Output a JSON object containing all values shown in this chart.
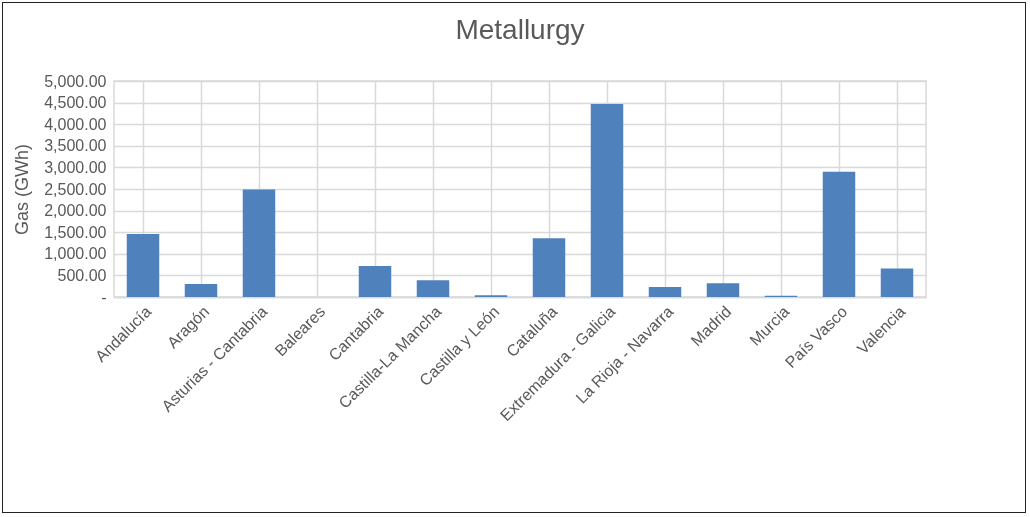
{
  "chart_data": {
    "type": "bar",
    "title": "Metallurgy",
    "ylabel": "Gas (GWh)",
    "categories": [
      "Andalucía",
      "Aragón",
      "Asturias - Cantabria",
      "Baleares",
      "Cantabria",
      "Castilla-La Mancha",
      "Castilla y León",
      "Cataluña",
      "Extremadura - Galicia",
      "La Rioja - Navarra",
      "Madrid",
      "Murcia",
      "País Vasco",
      "Valencia"
    ],
    "values": [
      1460,
      300,
      2490,
      0,
      720,
      390,
      40,
      1360,
      4470,
      230,
      320,
      30,
      2900,
      660
    ],
    "color": "#4f81bd",
    "ylim": [
      0,
      5000
    ],
    "yticks": [
      {
        "value": 0,
        "label": "-"
      },
      {
        "value": 500,
        "label": "500.00"
      },
      {
        "value": 1000,
        "label": "1,000.00"
      },
      {
        "value": 1500,
        "label": "1,500.00"
      },
      {
        "value": 2000,
        "label": "2,000.00"
      },
      {
        "value": 2500,
        "label": "2,500.00"
      },
      {
        "value": 3000,
        "label": "3,000.00"
      },
      {
        "value": 3500,
        "label": "3,500.00"
      },
      {
        "value": 4000,
        "label": "4,000.00"
      },
      {
        "value": 4500,
        "label": "4,500.00"
      },
      {
        "value": 5000,
        "label": "5,000.00"
      }
    ],
    "grid": true
  }
}
